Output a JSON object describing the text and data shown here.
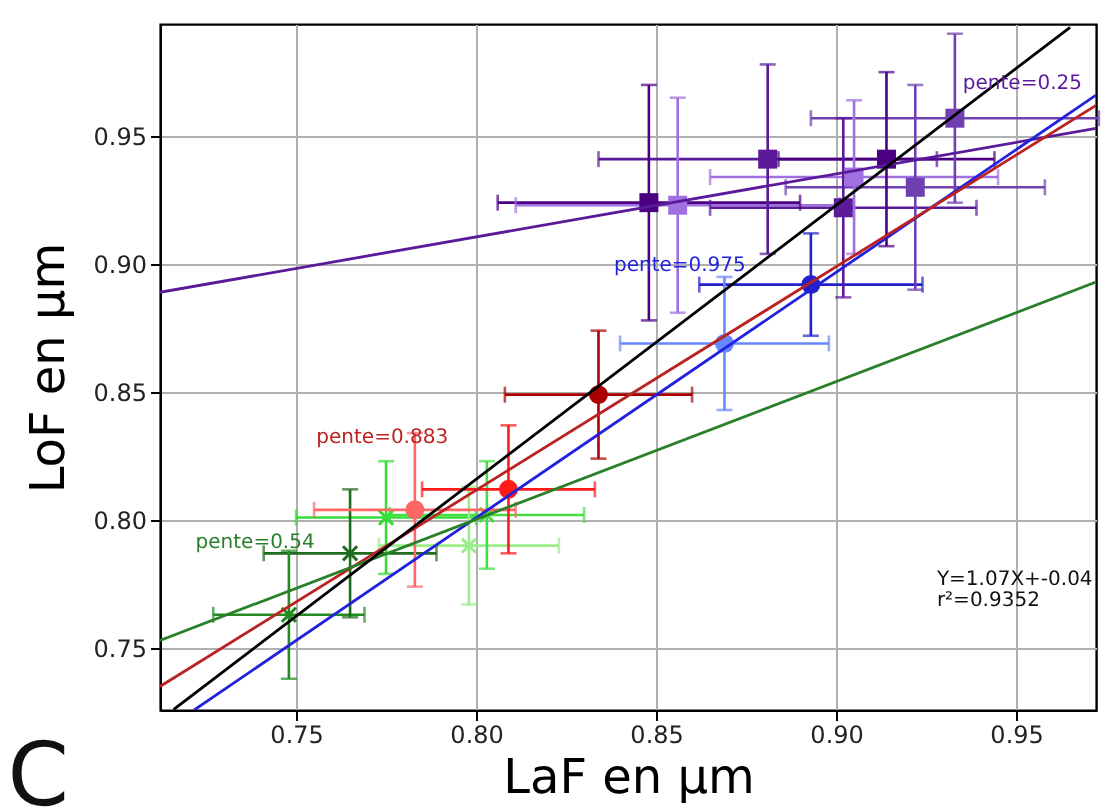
{
  "chart_data": {
    "type": "scatter",
    "xlabel": "LaF en µm",
    "ylabel": "LoF en µm",
    "xlim": [
      0.7122,
      0.9722
    ],
    "ylim": [
      0.7258,
      0.9938
    ],
    "xticks": [
      0.75,
      {
        "value": 0.8,
        "label": "0.80"
      },
      0.85,
      {
        "value": 0.9,
        "label": "0.90"
      },
      0.95
    ],
    "yticks": [
      0.75,
      {
        "value": 0.8,
        "label": "0.80"
      },
      0.85,
      {
        "value": 0.9,
        "label": "0.90"
      },
      0.95
    ],
    "grid": true,
    "series": [
      {
        "marker": "cross",
        "x": [
          0.748,
          0.765,
          0.775,
          0.798,
          0.803
        ],
        "values": [
          0.763,
          0.787,
          0.801,
          0.79,
          0.802
        ],
        "colors": [
          "#228b22",
          "#1f6b1f",
          "#33dd33",
          "#99ee88",
          "#44dd44"
        ],
        "errors": [
          0.025,
          0.025,
          0.022,
          0.023,
          0.021
        ],
        "xerrors": [
          0.021,
          0.024,
          0.025,
          0.025,
          0.027
        ]
      },
      {
        "marker": "circle",
        "x": [
          0.783,
          0.809,
          0.834
        ],
        "values": [
          0.804,
          0.812,
          0.849
        ],
        "colors": [
          "#ff6666",
          "#ff1a1a",
          "#aa0000"
        ],
        "errors": [
          0.03,
          0.025,
          0.025
        ],
        "xerrors": [
          0.028,
          0.024,
          0.026
        ]
      },
      {
        "marker": "circle",
        "x": [
          0.869,
          0.893
        ],
        "values": [
          0.869,
          0.892
        ],
        "colors": [
          "#6688ff",
          "#2222cc"
        ],
        "errors": [
          0.026,
          0.02
        ],
        "xerrors": [
          0.029,
          0.031
        ]
      },
      {
        "marker": "square",
        "x": [
          0.848,
          0.856,
          0.881,
          0.902,
          0.905,
          0.914,
          0.922,
          0.933
        ],
        "values": [
          0.924,
          0.923,
          0.941,
          0.922,
          0.934,
          0.941,
          0.93,
          0.957
        ],
        "colors": [
          "#4b0082",
          "#a070e0",
          "#5a1a9a",
          "#5a1a9a",
          "#a070e0",
          "#4b0082",
          "#7040b0",
          "#7040b0"
        ],
        "errors": [
          0.046,
          0.042,
          0.037,
          0.035,
          0.03,
          0.034,
          0.04,
          0.033
        ],
        "xerrors": [
          0.042,
          0.045,
          0.047,
          0.037,
          0.04,
          0.03,
          0.036,
          0.04
        ]
      },
      {
        "type": "line",
        "name": "pente=0.25",
        "color": "#5a1a9a",
        "x": [
          0.7122,
          0.9722
        ],
        "values": [
          0.889,
          0.953
        ]
      },
      {
        "type": "line",
        "name": "pente=0.975",
        "color": "#2222dd",
        "x": [
          0.7217,
          0.9722
        ],
        "values": [
          0.7258,
          0.966
        ]
      },
      {
        "type": "line",
        "name": "pente=0.883",
        "color": "#bb2222",
        "x": [
          0.7122,
          0.9722
        ],
        "values": [
          0.735,
          0.962
        ]
      },
      {
        "type": "line",
        "name": "pente=0.54",
        "color": "#2a802a",
        "x": [
          0.7122,
          0.9722
        ],
        "values": [
          0.753,
          0.893
        ]
      },
      {
        "type": "line",
        "color": "#000000",
        "x": [
          0.716,
          0.965
        ],
        "values": [
          0.726,
          0.9925
        ]
      }
    ],
    "annotations": [
      "Y=1.07X+-0.04\nr²=0.9352",
      "C"
    ]
  }
}
